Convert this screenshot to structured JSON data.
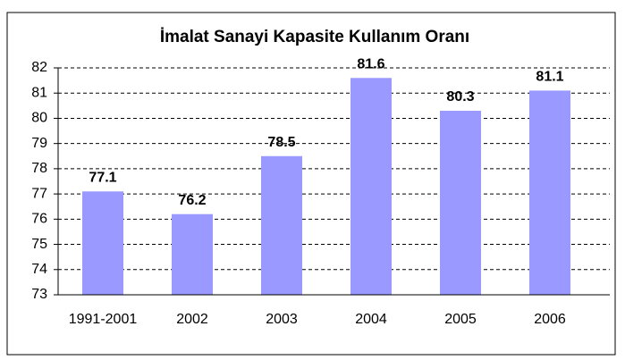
{
  "chart_data": {
    "type": "bar",
    "title": "İmalat Sanayi Kapasite Kullanım Oranı",
    "categories": [
      "1991-2001",
      "2002",
      "2003",
      "2004",
      "2005",
      "2006"
    ],
    "values": [
      77.1,
      76.2,
      78.5,
      81.6,
      80.3,
      81.1
    ],
    "color": "#9999ff",
    "ylim": [
      73,
      82
    ],
    "yticks": [
      73,
      74,
      75,
      76,
      77,
      78,
      79,
      80,
      81,
      82
    ],
    "grid": true
  }
}
